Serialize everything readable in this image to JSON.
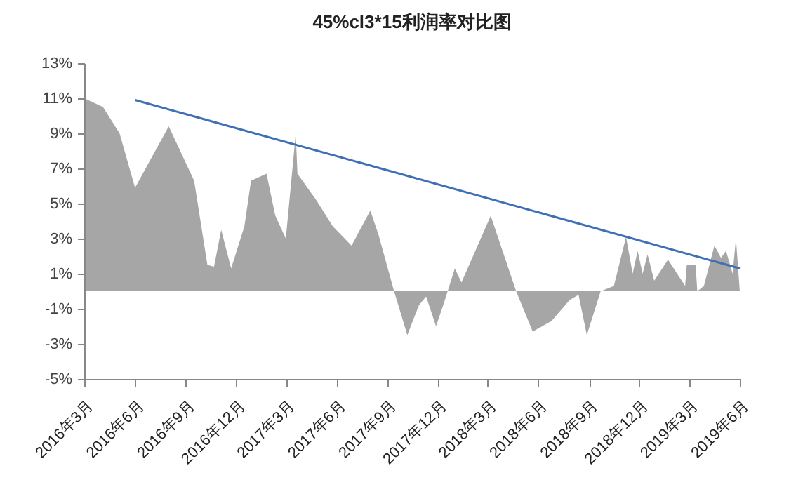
{
  "chart_data": {
    "type": "area",
    "title": "45%cl3*15利润率对比图",
    "xlim": [
      "2016-03-01",
      "2019-06-01"
    ],
    "xticks": [
      {
        "value": "2016-03-01",
        "label": "2016年3月"
      },
      {
        "value": "2016-06-01",
        "label": "2016年6月"
      },
      {
        "value": "2016-09-01",
        "label": "2016年9月"
      },
      {
        "value": "2016-12-01",
        "label": "2016年12月"
      },
      {
        "value": "2017-03-01",
        "label": "2017年3月"
      },
      {
        "value": "2017-06-01",
        "label": "2017年6月"
      },
      {
        "value": "2017-09-01",
        "label": "2017年9月"
      },
      {
        "value": "2017-12-01",
        "label": "2017年12月"
      },
      {
        "value": "2018-03-01",
        "label": "2018年3月"
      },
      {
        "value": "2018-06-01",
        "label": "2018年6月"
      },
      {
        "value": "2018-09-01",
        "label": "2018年9月"
      },
      {
        "value": "2018-12-01",
        "label": "2018年12月"
      },
      {
        "value": "2019-03-01",
        "label": "2019年3月"
      },
      {
        "value": "2019-06-01",
        "label": "2019年6月"
      }
    ],
    "ylim": [
      -5,
      13
    ],
    "yticks": [
      {
        "value": -5,
        "label": "-5%"
      },
      {
        "value": -3,
        "label": "-3%"
      },
      {
        "value": -1,
        "label": "-1%"
      },
      {
        "value": 1,
        "label": "1%"
      },
      {
        "value": 3,
        "label": "3%"
      },
      {
        "value": 5,
        "label": "5%"
      },
      {
        "value": 7,
        "label": "7%"
      },
      {
        "value": 9,
        "label": "9%"
      },
      {
        "value": 11,
        "label": "11%"
      },
      {
        "value": 13,
        "label": "13%"
      }
    ],
    "grid": false,
    "series": [
      {
        "type": "area",
        "color": "#a6a6a6",
        "x": [
          "2016-03-01",
          "2016-04-04",
          "2016-05-04",
          "2016-06-01",
          "2016-08-01",
          "2016-09-16",
          "2016-10-10",
          "2016-10-22",
          "2016-11-04",
          "2016-11-22",
          "2016-12-16",
          "2016-12-28",
          "2017-01-25",
          "2017-02-10",
          "2017-03-01",
          "2017-03-19",
          "2017-03-22",
          "2017-04-25",
          "2017-05-25",
          "2017-06-28",
          "2017-08-01",
          "2017-08-16",
          "2017-09-13",
          "2017-10-07",
          "2017-10-28",
          "2017-11-10",
          "2017-11-28",
          "2017-12-13",
          "2018-01-01",
          "2018-01-13",
          "2018-03-07",
          "2018-04-22",
          "2018-05-22",
          "2018-06-25",
          "2018-07-28",
          "2018-08-13",
          "2018-08-28",
          "2018-09-22",
          "2018-10-16",
          "2018-11-07",
          "2018-11-19",
          "2018-11-28",
          "2018-12-07",
          "2018-12-16",
          "2018-12-28",
          "2019-01-22",
          "2019-02-22",
          "2019-02-25",
          "2019-03-13",
          "2019-03-16",
          "2019-03-28",
          "2019-04-16",
          "2019-04-28",
          "2019-05-07",
          "2019-05-19",
          "2019-05-25",
          "2019-06-01"
        ],
        "values": [
          11.0,
          10.5,
          9.0,
          5.9,
          9.4,
          6.3,
          1.5,
          1.4,
          3.5,
          1.3,
          3.7,
          6.3,
          6.7,
          4.3,
          3.0,
          9.0,
          6.7,
          5.2,
          3.7,
          2.6,
          4.6,
          3.2,
          0,
          -2.5,
          -0.8,
          -0.3,
          -2.0,
          -0.6,
          1.3,
          0.5,
          4.3,
          0,
          -2.3,
          -1.7,
          -0.5,
          -0.2,
          -2.5,
          0,
          0.3,
          3.1,
          1.0,
          2.3,
          1.0,
          2.1,
          0.6,
          1.8,
          0.3,
          1.5,
          1.5,
          0,
          0.3,
          2.6,
          1.9,
          2.3,
          1.0,
          3.0,
          0
        ]
      },
      {
        "type": "line",
        "color": "#3f6fb5",
        "x": [
          "2016-06-01",
          "2019-06-01"
        ],
        "values": [
          10.9,
          1.3
        ]
      }
    ]
  }
}
